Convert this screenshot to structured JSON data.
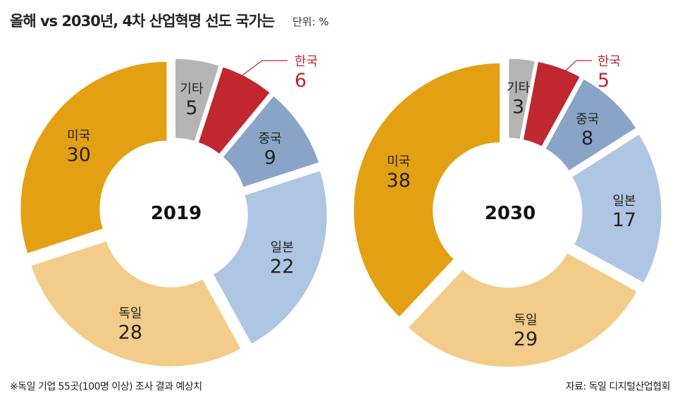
{
  "title": "올해 vs 2030년, 4차 산업혁명 선도 국가는",
  "unit": "단위: %",
  "note": "※독일 기업 55곳(100명 이상) 조사 결과 예상치",
  "source": "자료: 독일 디지털산업협회",
  "colors": {
    "미국": "#e2a012",
    "독일": "#f2cc88",
    "일본": "#aec5e3",
    "중국": "#8aa4c8",
    "한국": "#c1272f",
    "기타": "#b4b4b4",
    "highlight_text": "#c1272f"
  },
  "chart_data": [
    {
      "type": "pie",
      "title": "2019",
      "slices": [
        {
          "label": "기타",
          "value": 5
        },
        {
          "label": "한국",
          "value": 6
        },
        {
          "label": "중국",
          "value": 9
        },
        {
          "label": "일본",
          "value": 22
        },
        {
          "label": "독일",
          "value": 28
        },
        {
          "label": "미국",
          "value": 30
        }
      ]
    },
    {
      "type": "pie",
      "title": "2030",
      "slices": [
        {
          "label": "기타",
          "value": 3
        },
        {
          "label": "한국",
          "value": 5
        },
        {
          "label": "중국",
          "value": 8
        },
        {
          "label": "일본",
          "value": 17
        },
        {
          "label": "독일",
          "value": 29
        },
        {
          "label": "미국",
          "value": 38
        }
      ]
    }
  ]
}
